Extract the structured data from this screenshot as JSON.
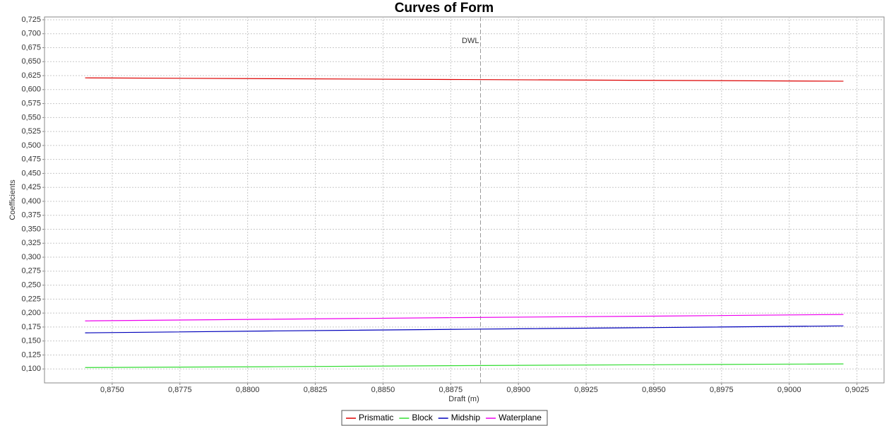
{
  "chart_data": {
    "type": "line",
    "title": "Curves of Form",
    "x_label": "Draft (m)",
    "y_label": "Coefficients",
    "x": [
      0.874,
      0.881,
      0.888,
      0.895,
      0.902
    ],
    "series": [
      {
        "name": "Prismatic",
        "color": "#dd0000",
        "values": [
          0.621,
          0.6195,
          0.618,
          0.6165,
          0.615
        ]
      },
      {
        "name": "Block",
        "color": "#33dd33",
        "values": [
          0.1025,
          0.104,
          0.106,
          0.1075,
          0.109
        ]
      },
      {
        "name": "Midship",
        "color": "#0000bb",
        "values": [
          0.1646,
          0.168,
          0.171,
          0.174,
          0.177
        ]
      },
      {
        "name": "Waterplane",
        "color": "#ee00ee",
        "values": [
          0.186,
          0.189,
          0.192,
          0.1945,
          0.1975
        ]
      }
    ],
    "markers": [
      {
        "label": "DWL",
        "x": 0.8886
      }
    ],
    "xlim": [
      0.8725,
      0.9035
    ],
    "ylim": [
      0.075,
      0.73
    ],
    "xticks": [
      {
        "value": 0.875,
        "label": "0,8750"
      },
      {
        "value": 0.8775,
        "label": "0,8775"
      },
      {
        "value": 0.88,
        "label": "0,8800"
      },
      {
        "value": 0.8825,
        "label": "0,8825"
      },
      {
        "value": 0.885,
        "label": "0,8850"
      },
      {
        "value": 0.8875,
        "label": "0,8875"
      },
      {
        "value": 0.89,
        "label": "0,8900"
      },
      {
        "value": 0.8925,
        "label": "0,8925"
      },
      {
        "value": 0.895,
        "label": "0,8950"
      },
      {
        "value": 0.8975,
        "label": "0,8975"
      },
      {
        "value": 0.9,
        "label": "0,9000"
      },
      {
        "value": 0.9025,
        "label": "0,9025"
      }
    ],
    "yticks": [
      {
        "value": 0.1,
        "label": "0,100"
      },
      {
        "value": 0.125,
        "label": "0,125"
      },
      {
        "value": 0.15,
        "label": "0,150"
      },
      {
        "value": 0.175,
        "label": "0,175"
      },
      {
        "value": 0.2,
        "label": "0,200"
      },
      {
        "value": 0.225,
        "label": "0,225"
      },
      {
        "value": 0.25,
        "label": "0,250"
      },
      {
        "value": 0.275,
        "label": "0,275"
      },
      {
        "value": 0.3,
        "label": "0,300"
      },
      {
        "value": 0.325,
        "label": "0,325"
      },
      {
        "value": 0.35,
        "label": "0,350"
      },
      {
        "value": 0.375,
        "label": "0,375"
      },
      {
        "value": 0.4,
        "label": "0,400"
      },
      {
        "value": 0.425,
        "label": "0,425"
      },
      {
        "value": 0.45,
        "label": "0,450"
      },
      {
        "value": 0.475,
        "label": "0,475"
      },
      {
        "value": 0.5,
        "label": "0,500"
      },
      {
        "value": 0.525,
        "label": "0,525"
      },
      {
        "value": 0.55,
        "label": "0,550"
      },
      {
        "value": 0.575,
        "label": "0,575"
      },
      {
        "value": 0.6,
        "label": "0,600"
      },
      {
        "value": 0.625,
        "label": "0,625"
      },
      {
        "value": 0.65,
        "label": "0,650"
      },
      {
        "value": 0.675,
        "label": "0,675"
      },
      {
        "value": 0.7,
        "label": "0,700"
      },
      {
        "value": 0.725,
        "label": "0,725"
      }
    ],
    "grid": true,
    "legend": "bottom"
  }
}
